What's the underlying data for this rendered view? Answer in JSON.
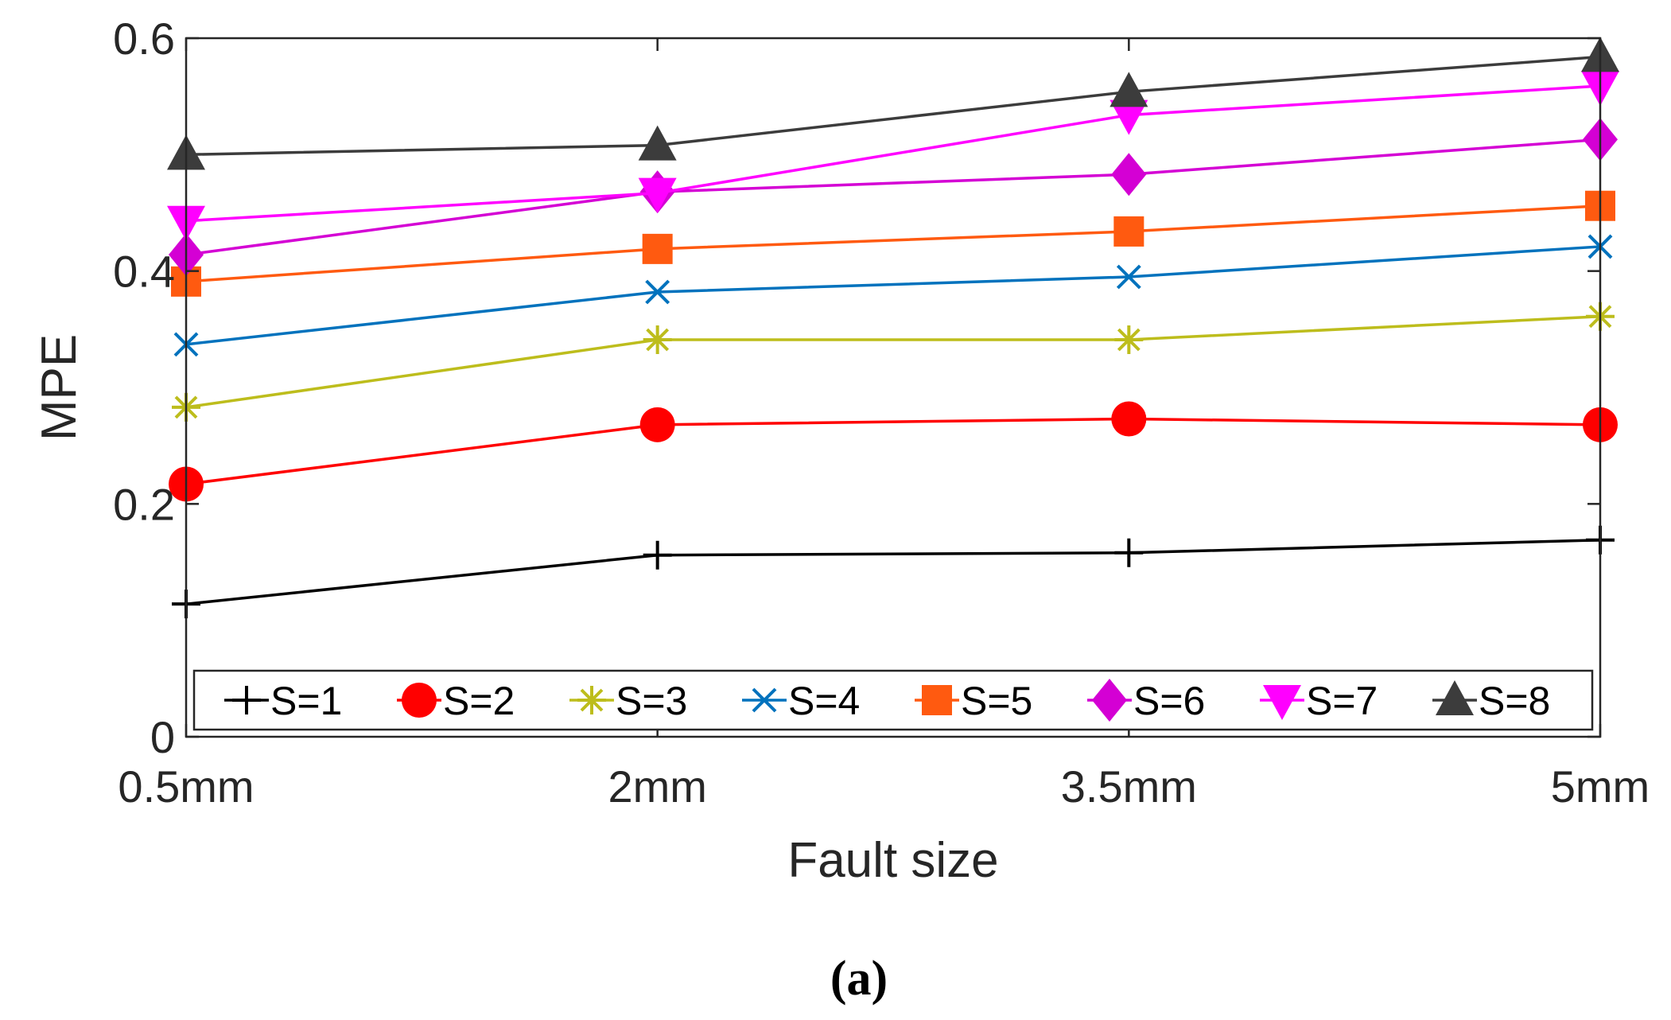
{
  "chart_data": {
    "type": "line",
    "xlabel": "Fault size",
    "ylabel": "MPE",
    "categories": [
      "0.5mm",
      "2mm",
      "3.5mm",
      "5mm"
    ],
    "ylim": [
      0,
      0.6
    ],
    "yticks": [
      0,
      0.2,
      0.4,
      0.6
    ],
    "ytick_labels": [
      "0",
      "0.2",
      "0.4",
      "0.6"
    ],
    "legend_position": "bottom-inside",
    "series": [
      {
        "name": "S=1",
        "marker": "plus",
        "color": "#000000",
        "values": [
          0.114,
          0.156,
          0.158,
          0.169
        ]
      },
      {
        "name": "S=2",
        "marker": "circle",
        "color": "#ff0000",
        "values": [
          0.217,
          0.268,
          0.273,
          0.268
        ]
      },
      {
        "name": "S=3",
        "marker": "asterisk",
        "color": "#bdbd1c",
        "values": [
          0.283,
          0.341,
          0.341,
          0.361
        ]
      },
      {
        "name": "S=4",
        "marker": "x",
        "color": "#0072bd",
        "values": [
          0.337,
          0.382,
          0.395,
          0.421
        ]
      },
      {
        "name": "S=5",
        "marker": "square",
        "color": "#ff5a10",
        "values": [
          0.391,
          0.419,
          0.434,
          0.456
        ]
      },
      {
        "name": "S=6",
        "marker": "diamond",
        "color": "#d400d4",
        "values": [
          0.414,
          0.468,
          0.483,
          0.513
        ]
      },
      {
        "name": "S=7",
        "marker": "triangle-down",
        "color": "#ff00ff",
        "values": [
          0.443,
          0.467,
          0.534,
          0.559
        ]
      },
      {
        "name": "S=8",
        "marker": "triangle-up",
        "color": "#3c3c3c",
        "values": [
          0.5,
          0.508,
          0.554,
          0.584
        ]
      }
    ]
  },
  "caption": "(a)"
}
